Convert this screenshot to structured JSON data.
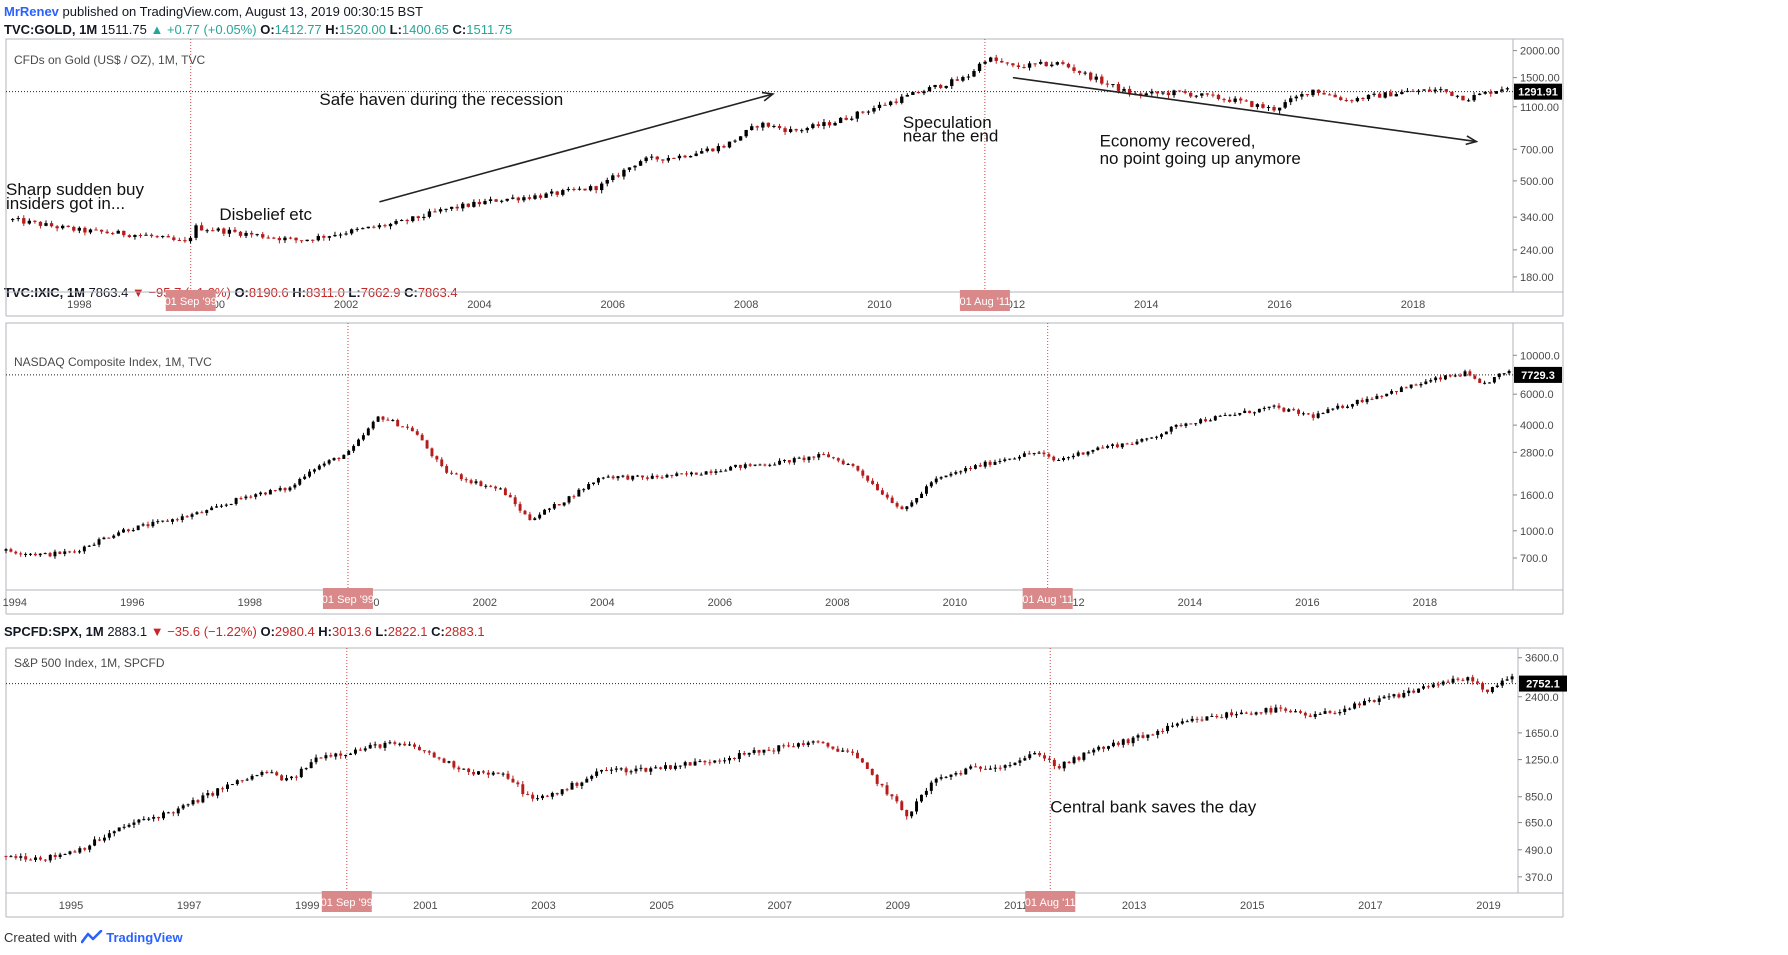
{
  "header": {
    "user": "MrRenev",
    "published": "published on TradingView.com, August 13, 2019 00:30:15 BST"
  },
  "footer": {
    "created": "Created with",
    "brand": "TradingView"
  },
  "colors": {
    "up": "#000000",
    "down": "#b71c1c",
    "marker": "#d98989",
    "accent": "#2962ff"
  },
  "panels": [
    {
      "id": "gold",
      "ticker": {
        "symbol": "TVC:GOLD, 1M",
        "last": "1511.75",
        "change": "+0.77 (+0.05%)",
        "direction": "up",
        "o_label": "O:",
        "o": "1412.77",
        "h_label": "H:",
        "h": "1520.00",
        "l_label": "L:",
        "l": "1400.65",
        "c_label": "C:",
        "c": "1511.75"
      },
      "legend": "CFDs on Gold (US$ / OZ), 1M, TVC",
      "last_price_label": "1291.91",
      "chart_data": {
        "type": "candlestick",
        "scale": "log",
        "ylim": [
          160,
          2100
        ],
        "xlim": [
          1996.9,
          2019.5
        ],
        "y_ticks": [
          "2000.00",
          "1500.00",
          "1100.00",
          "700.00",
          "500.00",
          "340.00",
          "240.00",
          "180.00"
        ],
        "y_tick_values": [
          2000,
          1500,
          1100,
          700,
          500,
          340,
          240,
          180
        ],
        "x_ticks": [
          "1998",
          "2000",
          "2002",
          "2004",
          "2006",
          "2008",
          "2010",
          "2012",
          "2014",
          "2016",
          "2018"
        ],
        "x_tick_values": [
          1998,
          2000,
          2002,
          2004,
          2006,
          2008,
          2010,
          2012,
          2014,
          2016,
          2018
        ],
        "markers": [
          {
            "x": 1999.67,
            "label": "01 Sep '99"
          },
          {
            "x": 2011.58,
            "label": "01 Aug '11"
          }
        ],
        "last_price": 1291.91,
        "trend_points": [
          [
            1997.0,
            330
          ],
          [
            1998.0,
            295
          ],
          [
            1999.0,
            280
          ],
          [
            1999.6,
            258
          ],
          [
            1999.75,
            305
          ],
          [
            2000.5,
            285
          ],
          [
            2001.3,
            265
          ],
          [
            2002.0,
            290
          ],
          [
            2002.8,
            320
          ],
          [
            2003.5,
            370
          ],
          [
            2004.3,
            410
          ],
          [
            2005.0,
            430
          ],
          [
            2005.8,
            470
          ],
          [
            2006.4,
            620
          ],
          [
            2007.0,
            650
          ],
          [
            2007.7,
            730
          ],
          [
            2008.2,
            920
          ],
          [
            2008.7,
            850
          ],
          [
            2009.3,
            930
          ],
          [
            2010.0,
            1110
          ],
          [
            2010.8,
            1350
          ],
          [
            2011.3,
            1500
          ],
          [
            2011.6,
            1850
          ],
          [
            2012.0,
            1680
          ],
          [
            2012.7,
            1750
          ],
          [
            2013.3,
            1450
          ],
          [
            2013.8,
            1250
          ],
          [
            2014.5,
            1280
          ],
          [
            2015.3,
            1180
          ],
          [
            2015.9,
            1070
          ],
          [
            2016.5,
            1320
          ],
          [
            2017.0,
            1180
          ],
          [
            2017.8,
            1280
          ],
          [
            2018.4,
            1320
          ],
          [
            2018.8,
            1200
          ],
          [
            2019.3,
            1330
          ],
          [
            2019.6,
            1420
          ]
        ],
        "annotations": [
          {
            "text": "Sharp sudden buy",
            "x": 1996.9,
            "y": 430
          },
          {
            "text": "insiders got in...",
            "x": 1996.9,
            "y": 370
          },
          {
            "text": "Disbelief etc",
            "x": 2000.1,
            "y": 330
          },
          {
            "text": "Safe haven during the recession",
            "x": 2001.6,
            "y": 1120
          },
          {
            "text": "Speculation",
            "x": 2010.35,
            "y": 880
          },
          {
            "text": "near the end",
            "x": 2010.35,
            "y": 760
          },
          {
            "text": "Economy recovered,",
            "x": 2013.3,
            "y": 720
          },
          {
            "text": "no point going up anymore",
            "x": 2013.3,
            "y": 600
          }
        ],
        "arrows": [
          {
            "from": [
              2002.5,
              400
            ],
            "to": [
              2008.4,
              1260
            ]
          },
          {
            "from": [
              2012.0,
              1500
            ],
            "to": [
              2018.95,
              760
            ]
          }
        ]
      }
    },
    {
      "id": "nasdaq",
      "ticker": {
        "symbol": "TVC:IXIC, 1M",
        "last": "7863.4",
        "change": "−95.7 (−1.2%)",
        "direction": "down",
        "o_label": "O:",
        "o": "8190.6",
        "h_label": "H:",
        "h": "8311.0",
        "l_label": "L:",
        "l": "7662.9",
        "c_label": "C:",
        "c": "7863.4"
      },
      "legend": "NASDAQ Composite Index, 1M, TVC",
      "last_price_label": "7729.3",
      "chart_data": {
        "type": "candlestick",
        "scale": "log",
        "ylim": [
          560,
          11000
        ],
        "xlim": [
          1993.85,
          2019.5
        ],
        "y_ticks": [
          "10000.0",
          "6000.0",
          "4000.0",
          "2800.0",
          "1600.0",
          "1000.0",
          "700.0"
        ],
        "y_tick_values": [
          10000,
          6000,
          4000,
          2800,
          1600,
          1000,
          700
        ],
        "x_ticks": [
          "1994",
          "1996",
          "1998",
          "2000",
          "2002",
          "2004",
          "2006",
          "2008",
          "2010",
          "2012",
          "2014",
          "2016",
          "2018"
        ],
        "x_tick_values": [
          1994,
          1996,
          1998,
          2000,
          2002,
          2004,
          2006,
          2008,
          2010,
          2012,
          2014,
          2016,
          2018
        ],
        "markers": [
          {
            "x": 1999.67,
            "label": "01 Sep '99"
          },
          {
            "x": 2011.58,
            "label": "01 Aug '11"
          }
        ],
        "last_price": 7729.3,
        "trend_points": [
          [
            1993.85,
            770
          ],
          [
            1994.5,
            730
          ],
          [
            1995.0,
            760
          ],
          [
            1995.8,
            1000
          ],
          [
            1996.5,
            1120
          ],
          [
            1997.3,
            1300
          ],
          [
            1998.0,
            1600
          ],
          [
            1998.7,
            1750
          ],
          [
            1999.0,
            2200
          ],
          [
            1999.7,
            2800
          ],
          [
            2000.2,
            4500
          ],
          [
            2000.8,
            3700
          ],
          [
            2001.3,
            2200
          ],
          [
            2001.8,
            1900
          ],
          [
            2002.3,
            1700
          ],
          [
            2002.75,
            1160
          ],
          [
            2003.3,
            1450
          ],
          [
            2004.0,
            2050
          ],
          [
            2004.7,
            2000
          ],
          [
            2005.5,
            2100
          ],
          [
            2006.2,
            2300
          ],
          [
            2007.0,
            2450
          ],
          [
            2007.8,
            2700
          ],
          [
            2008.3,
            2300
          ],
          [
            2008.8,
            1600
          ],
          [
            2009.15,
            1300
          ],
          [
            2009.6,
            1900
          ],
          [
            2010.2,
            2250
          ],
          [
            2010.9,
            2600
          ],
          [
            2011.4,
            2800
          ],
          [
            2011.7,
            2500
          ],
          [
            2012.4,
            2950
          ],
          [
            2013.2,
            3250
          ],
          [
            2013.9,
            4100
          ],
          [
            2014.6,
            4500
          ],
          [
            2015.4,
            5050
          ],
          [
            2016.1,
            4500
          ],
          [
            2016.8,
            5400
          ],
          [
            2017.5,
            6300
          ],
          [
            2018.2,
            7300
          ],
          [
            2018.7,
            7900
          ],
          [
            2018.95,
            6700
          ],
          [
            2019.3,
            7800
          ],
          [
            2019.6,
            8100
          ]
        ]
      }
    },
    {
      "id": "spx",
      "ticker": {
        "symbol": "SPCFD:SPX, 1M",
        "last": "2883.1",
        "change": "−35.6 (−1.22%)",
        "direction": "down",
        "o_label": "O:",
        "o": "2980.4",
        "h_label": "H:",
        "h": "3013.6",
        "l_label": "L:",
        "l": "2822.1",
        "c_label": "C:",
        "c": "2883.1"
      },
      "legend": "S&P 500 Index, 1M, SPCFD",
      "last_price_label": "2752.1",
      "chart_data": {
        "type": "candlestick",
        "scale": "log",
        "ylim": [
          340,
          3900
        ],
        "xlim": [
          1993.9,
          2019.5
        ],
        "y_ticks": [
          "3600.0",
          "2400.0",
          "1650.0",
          "1250.0",
          "850.0",
          "650.0",
          "490.0",
          "370.0"
        ],
        "y_tick_values": [
          3600,
          2400,
          1650,
          1250,
          850,
          650,
          490,
          370
        ],
        "x_ticks": [
          "1995",
          "1997",
          "1999",
          "2001",
          "2003",
          "2005",
          "2007",
          "2009",
          "2011",
          "2013",
          "2015",
          "2017",
          "2019"
        ],
        "x_tick_values": [
          1995,
          1997,
          1999,
          2001,
          2003,
          2005,
          2007,
          2009,
          2011,
          2013,
          2015,
          2017,
          2019
        ],
        "markers": [
          {
            "x": 1999.67,
            "label": "01 Sep '99"
          },
          {
            "x": 2011.58,
            "label": "01 Aug '11"
          }
        ],
        "last_price": 2752.1,
        "trend_points": [
          [
            1993.9,
            460
          ],
          [
            1994.6,
            450
          ],
          [
            1995.2,
            500
          ],
          [
            1996.0,
            640
          ],
          [
            1996.8,
            740
          ],
          [
            1997.6,
            940
          ],
          [
            1998.3,
            1100
          ],
          [
            1998.7,
            1000
          ],
          [
            1999.2,
            1300
          ],
          [
            1999.7,
            1350
          ],
          [
            2000.3,
            1470
          ],
          [
            2000.8,
            1430
          ],
          [
            2001.4,
            1200
          ],
          [
            2001.8,
            1100
          ],
          [
            2002.4,
            1050
          ],
          [
            2002.8,
            820
          ],
          [
            2003.3,
            900
          ],
          [
            2004.0,
            1120
          ],
          [
            2004.7,
            1130
          ],
          [
            2005.5,
            1200
          ],
          [
            2006.3,
            1300
          ],
          [
            2006.9,
            1400
          ],
          [
            2007.5,
            1500
          ],
          [
            2008.2,
            1350
          ],
          [
            2008.8,
            900
          ],
          [
            2009.15,
            700
          ],
          [
            2009.6,
            1000
          ],
          [
            2010.2,
            1130
          ],
          [
            2010.9,
            1200
          ],
          [
            2011.4,
            1340
          ],
          [
            2011.7,
            1150
          ],
          [
            2012.4,
            1400
          ],
          [
            2013.2,
            1600
          ],
          [
            2013.9,
            1850
          ],
          [
            2014.6,
            2000
          ],
          [
            2015.4,
            2100
          ],
          [
            2016.0,
            1950
          ],
          [
            2016.8,
            2200
          ],
          [
            2017.5,
            2450
          ],
          [
            2018.1,
            2750
          ],
          [
            2018.75,
            2900
          ],
          [
            2018.95,
            2450
          ],
          [
            2019.3,
            2900
          ],
          [
            2019.6,
            2950
          ]
        ],
        "annotations": [
          {
            "text": "Central bank saves the day",
            "x": 2011.58,
            "y": 720
          }
        ]
      }
    }
  ]
}
